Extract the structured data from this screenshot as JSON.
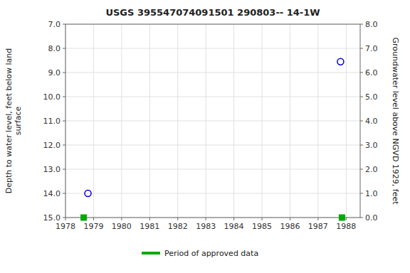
{
  "chart_data": {
    "type": "scatter",
    "title": "USGS 395547074091501 290803-- 14-1W",
    "y_label": "Depth to water level, feet below land\nsurface",
    "y2_label": "Groundwater level above NGVD 1929, feet",
    "xlim": [
      1978,
      1988.5
    ],
    "xticks": [
      1978,
      1979,
      1980,
      1981,
      1982,
      1983,
      1984,
      1985,
      1986,
      1987,
      1988
    ],
    "ylim": [
      15.0,
      7.0
    ],
    "yticks": [
      {
        "value": 7.0,
        "label": "7.0"
      },
      {
        "value": 8.0,
        "label": "8.0"
      },
      {
        "value": 9.0,
        "label": "9.0"
      },
      {
        "value": 10.0,
        "label": "10.0"
      },
      {
        "value": 11.0,
        "label": "11.0"
      },
      {
        "value": 12.0,
        "label": "12.0"
      },
      {
        "value": 13.0,
        "label": "13.0"
      },
      {
        "value": 14.0,
        "label": "14.0"
      },
      {
        "value": 15.0,
        "label": "15.0"
      }
    ],
    "y2lim": [
      0.0,
      8.0
    ],
    "y2ticks": [
      {
        "value": 0.0,
        "label": "0.0"
      },
      {
        "value": 1.0,
        "label": "1.0"
      },
      {
        "value": 2.0,
        "label": "2.0"
      },
      {
        "value": 3.0,
        "label": "3.0"
      },
      {
        "value": 4.0,
        "label": "4.0"
      },
      {
        "value": 5.0,
        "label": "5.0"
      },
      {
        "value": 6.0,
        "label": "6.0"
      },
      {
        "value": 7.0,
        "label": "7.0"
      },
      {
        "value": 8.0,
        "label": "8.0"
      }
    ],
    "grid": true,
    "legend": "bottom",
    "series": [
      {
        "color": "#0000cc",
        "marker": "circle",
        "x": [
          1978.8,
          1987.8
        ],
        "values": [
          14.0,
          8.55
        ]
      },
      {
        "name": "Period of approved data",
        "color": "#00aa00",
        "marker": "square",
        "x": [
          1978.65,
          1987.85
        ],
        "values": [
          15.0,
          15.0
        ]
      }
    ]
  }
}
